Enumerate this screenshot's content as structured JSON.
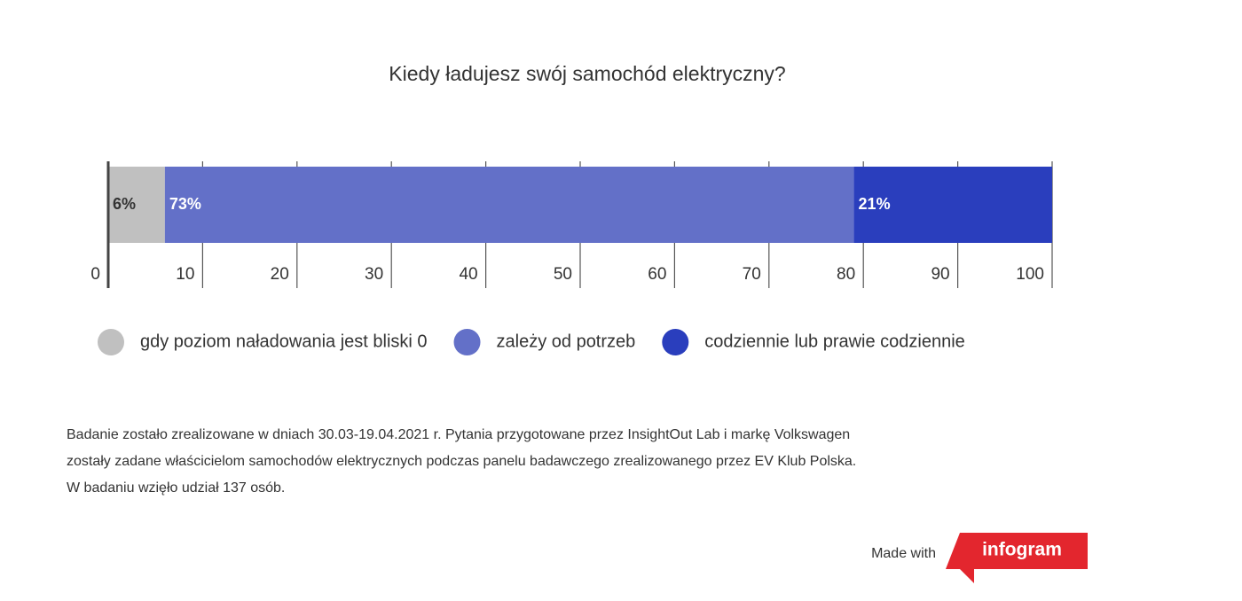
{
  "chart_data": {
    "type": "stacked-bar-horizontal",
    "title": "Kiedy ładujesz swój samochód elektryczny?",
    "categories": [
      null
    ],
    "series": [
      {
        "name": "gdy poziom naładowania jest bliski 0",
        "color": "#c0c0c0",
        "values": [
          6
        ],
        "value_labels": [
          "6%"
        ]
      },
      {
        "name": "zależy od potrzeb",
        "color": "#6370c8",
        "values": [
          73
        ],
        "value_labels": [
          "73%"
        ]
      },
      {
        "name": "codziennie lub prawie codziennie",
        "color": "#2a3ebd",
        "values": [
          21
        ],
        "value_labels": [
          "21%"
        ]
      }
    ],
    "xlim": [
      0,
      100
    ],
    "xticks": [
      0,
      10,
      20,
      30,
      40,
      50,
      60,
      70,
      80,
      90,
      100
    ],
    "grid": true,
    "legend": "bottom",
    "note": [
      "Badanie zostało zrealizowane w dniach 30.03-19.04.2021 r. Pytania przygotowane przez InsightOut Lab i markę Volkswagen",
      "zostały zadane właścicielom samochodów elektrycznych podczas panelu badawczego zrealizowanego przez EV Klub Polska.",
      "W badaniu wzięło udział 137 osób."
    ],
    "credit": "Made with",
    "logo": "infogram"
  }
}
